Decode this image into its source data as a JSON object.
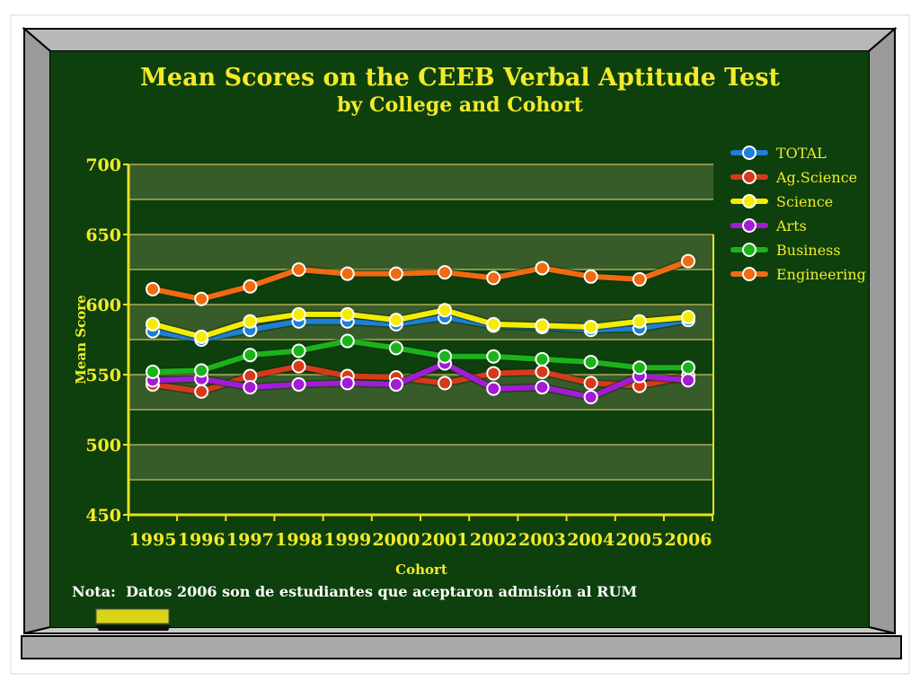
{
  "chart_data": {
    "type": "line",
    "title": "Mean Scores on the CEEB Verbal Aptitude Test",
    "subtitle": "by College and Cohort",
    "xlabel": "Cohort",
    "ylabel": "Mean Score",
    "categories": [
      "1995",
      "1996",
      "1997",
      "1998",
      "1999",
      "2000",
      "2001",
      "2002",
      "2003",
      "2004",
      "2005",
      "2006"
    ],
    "ylim": [
      450,
      700
    ],
    "yticks": [
      "450",
      "500",
      "550",
      "600",
      "650",
      "700"
    ],
    "grid": true,
    "legend_position": "right",
    "series": [
      {
        "name": "TOTAL",
        "color": "#1f7fd4",
        "values": [
          581,
          575,
          582,
          588,
          588,
          586,
          591,
          585,
          584,
          582,
          583,
          589
        ]
      },
      {
        "name": "Ag.Science",
        "color": "#d63a1a",
        "values": [
          543,
          538,
          549,
          556,
          549,
          548,
          544,
          551,
          552,
          544,
          542,
          549
        ]
      },
      {
        "name": "Science",
        "color": "#f5ec00",
        "values": [
          586,
          577,
          588,
          593,
          593,
          589,
          596,
          586,
          585,
          584,
          588,
          591
        ]
      },
      {
        "name": "Arts",
        "color": "#a21bd6",
        "values": [
          546,
          547,
          541,
          543,
          544,
          543,
          558,
          540,
          541,
          534,
          549,
          546
        ]
      },
      {
        "name": "Business",
        "color": "#1bb31b",
        "values": [
          552,
          553,
          564,
          567,
          574,
          569,
          563,
          563,
          561,
          559,
          555,
          555
        ]
      },
      {
        "name": "Engineering",
        "color": "#f06a10",
        "values": [
          611,
          604,
          613,
          625,
          622,
          622,
          623,
          619,
          626,
          620,
          618,
          631
        ]
      }
    ]
  },
  "footnote": "Nota:  Datos 2006 son de estudiantes que aceptaron admisión al RUM"
}
